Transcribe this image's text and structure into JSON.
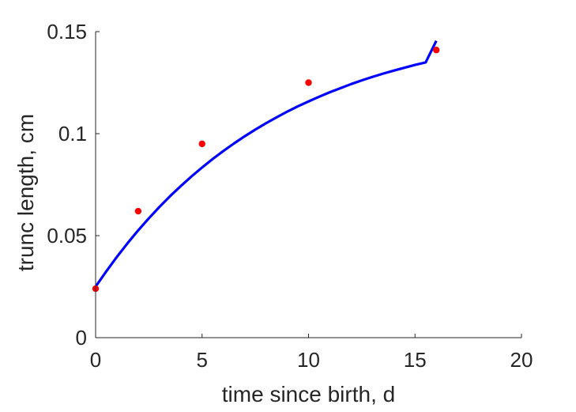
{
  "chart_data": {
    "type": "scatter",
    "title": "",
    "xlabel": "time since birth, d",
    "ylabel": "trunc length, cm",
    "xlim": [
      0,
      20
    ],
    "ylim": [
      0,
      0.15
    ],
    "xticks": [
      0,
      5,
      10,
      15,
      20
    ],
    "xtick_labels": [
      "0",
      "5",
      "10",
      "15",
      "20"
    ],
    "yticks": [
      0,
      0.05,
      0.1,
      0.15
    ],
    "ytick_labels": [
      "0",
      "0.05",
      "0.1",
      "0.15"
    ],
    "grid": false,
    "legend": "none",
    "box": "left-bottom",
    "series": [
      {
        "kind": "points",
        "color": "#ff0000",
        "x": [
          0,
          2,
          5,
          10,
          16
        ],
        "y": [
          0.024,
          0.062,
          0.095,
          0.125,
          0.141
        ]
      },
      {
        "kind": "line",
        "color": "#0000ff",
        "x": [
          0,
          0.5,
          1,
          1.5,
          2,
          2.5,
          3,
          3.5,
          4,
          4.5,
          5,
          5.5,
          6,
          6.5,
          7,
          7.5,
          8,
          8.5,
          9,
          9.5,
          10,
          10.5,
          11,
          11.5,
          12,
          12.5,
          13,
          13.5,
          14,
          14.5,
          15,
          15.5,
          16
        ],
        "y": [
          0.025,
          0.0325,
          0.0396,
          0.0463,
          0.0526,
          0.0585,
          0.0641,
          0.0694,
          0.0743,
          0.079,
          0.0834,
          0.0876,
          0.0915,
          0.0952,
          0.0987,
          0.102,
          0.1051,
          0.108,
          0.1108,
          0.1134,
          0.1158,
          0.1181,
          0.1203,
          0.1223,
          0.1243,
          0.1261,
          0.1278,
          0.1294,
          0.1309,
          0.1323,
          0.1337,
          0.1349,
          0.1461
        ]
      }
    ]
  }
}
